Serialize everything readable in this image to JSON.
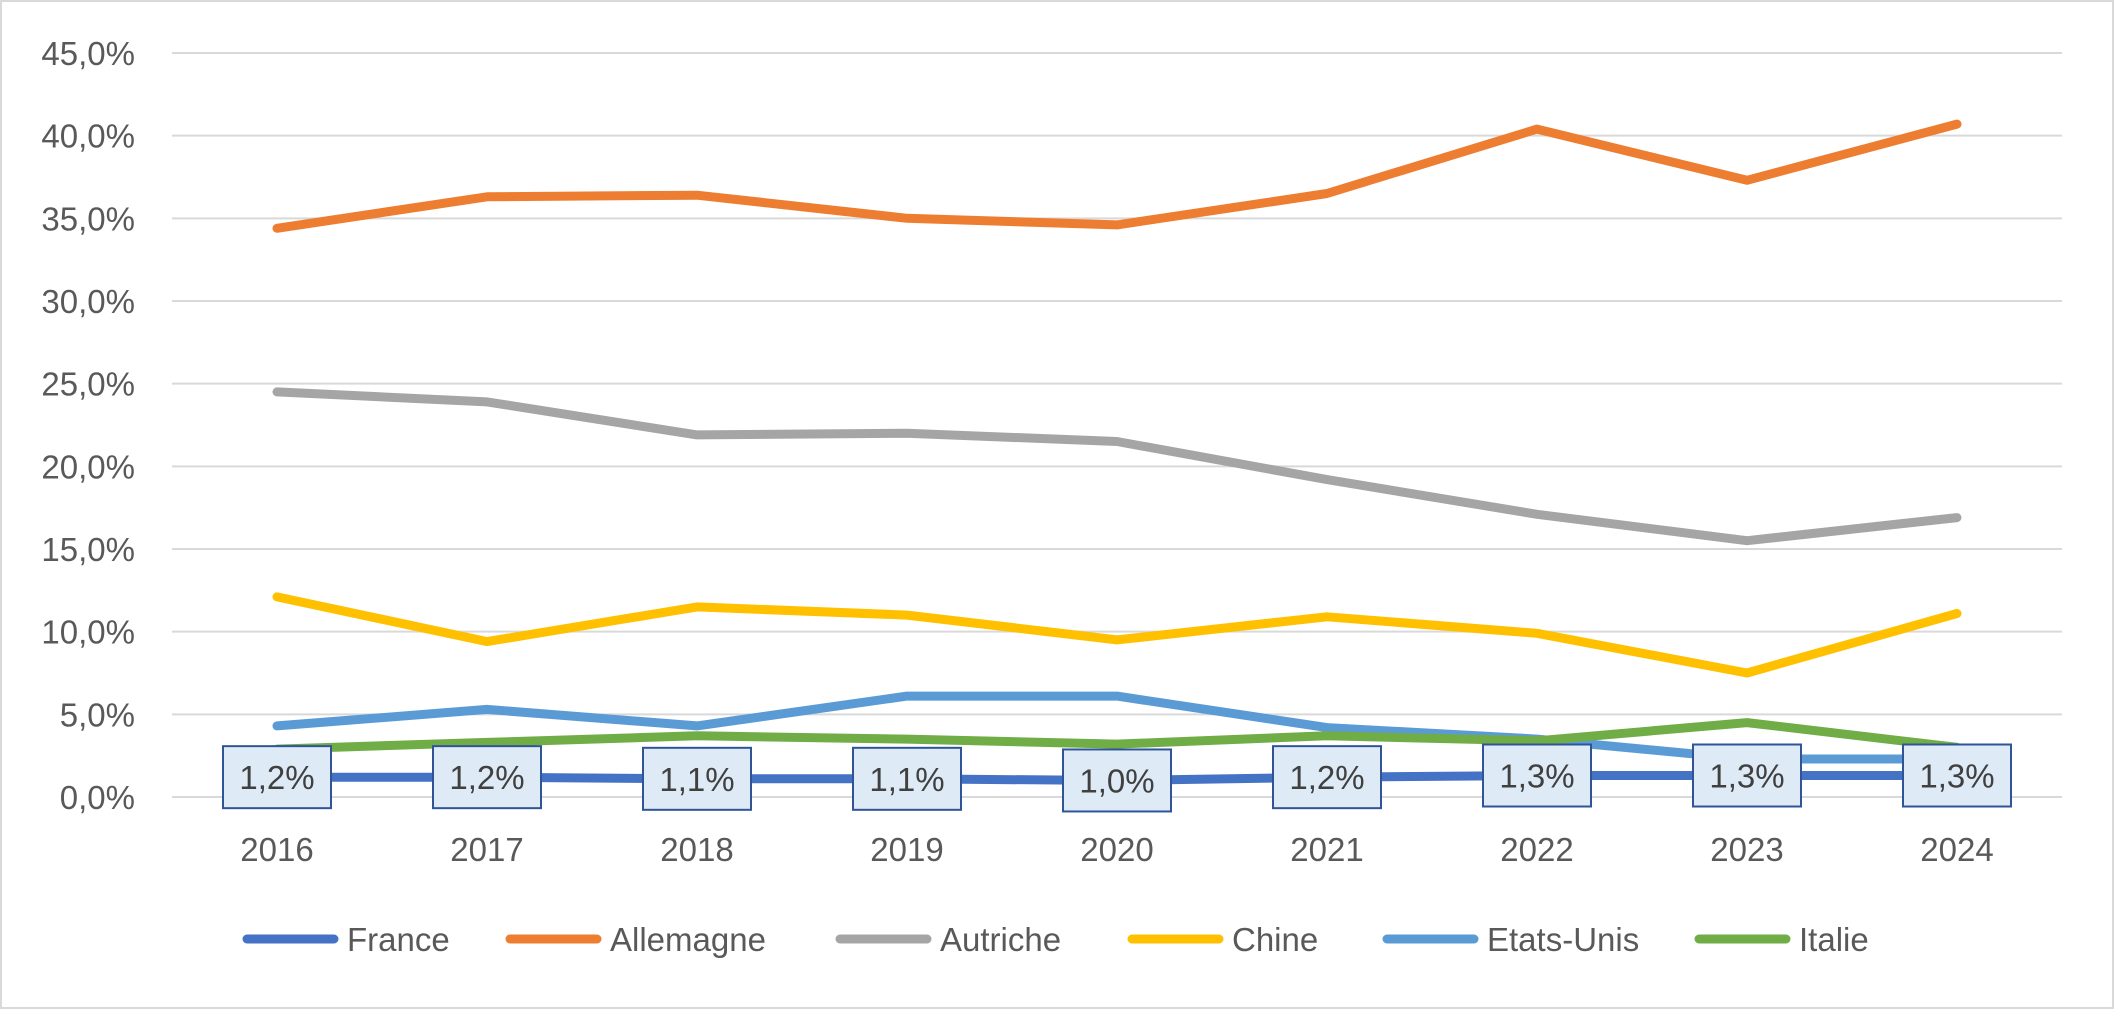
{
  "chart_data": {
    "type": "line",
    "title": "",
    "xlabel": "",
    "ylabel": "",
    "ylim": [
      0,
      45
    ],
    "y_tick_step": 5,
    "y_tick_labels": [
      "0,0%",
      "5,0%",
      "10,0%",
      "15,0%",
      "20,0%",
      "25,0%",
      "30,0%",
      "35,0%",
      "40,0%",
      "45,0%"
    ],
    "grid": true,
    "legend_position": "bottom",
    "categories": [
      "2016",
      "2017",
      "2018",
      "2019",
      "2020",
      "2021",
      "2022",
      "2023",
      "2024"
    ],
    "series": [
      {
        "name": "France",
        "color": "#4472c4",
        "values": [
          1.2,
          1.2,
          1.1,
          1.1,
          1.0,
          1.2,
          1.3,
          1.3,
          1.3
        ],
        "data_labels": [
          "1,2%",
          "1,2%",
          "1,1%",
          "1,1%",
          "1,0%",
          "1,2%",
          "1,3%",
          "1,3%",
          "1,3%"
        ]
      },
      {
        "name": "Allemagne",
        "color": "#ed7d31",
        "values": [
          34.4,
          36.3,
          36.4,
          35.0,
          34.6,
          36.5,
          40.4,
          37.3,
          40.7
        ]
      },
      {
        "name": "Autriche",
        "color": "#a5a5a5",
        "values": [
          24.5,
          23.9,
          21.9,
          22.0,
          21.5,
          19.2,
          17.1,
          15.5,
          16.9
        ]
      },
      {
        "name": "Chine",
        "color": "#ffc000",
        "values": [
          12.1,
          9.4,
          11.5,
          11.0,
          9.5,
          10.9,
          9.9,
          7.5,
          11.1
        ]
      },
      {
        "name": "Etats-Unis",
        "color": "#5b9bd5",
        "values": [
          4.3,
          5.3,
          4.3,
          6.1,
          6.1,
          4.2,
          3.5,
          2.3,
          2.3
        ]
      },
      {
        "name": "Italie",
        "color": "#70ad47",
        "values": [
          2.9,
          3.3,
          3.7,
          3.5,
          3.2,
          3.7,
          3.4,
          4.5,
          3.0
        ]
      }
    ]
  }
}
